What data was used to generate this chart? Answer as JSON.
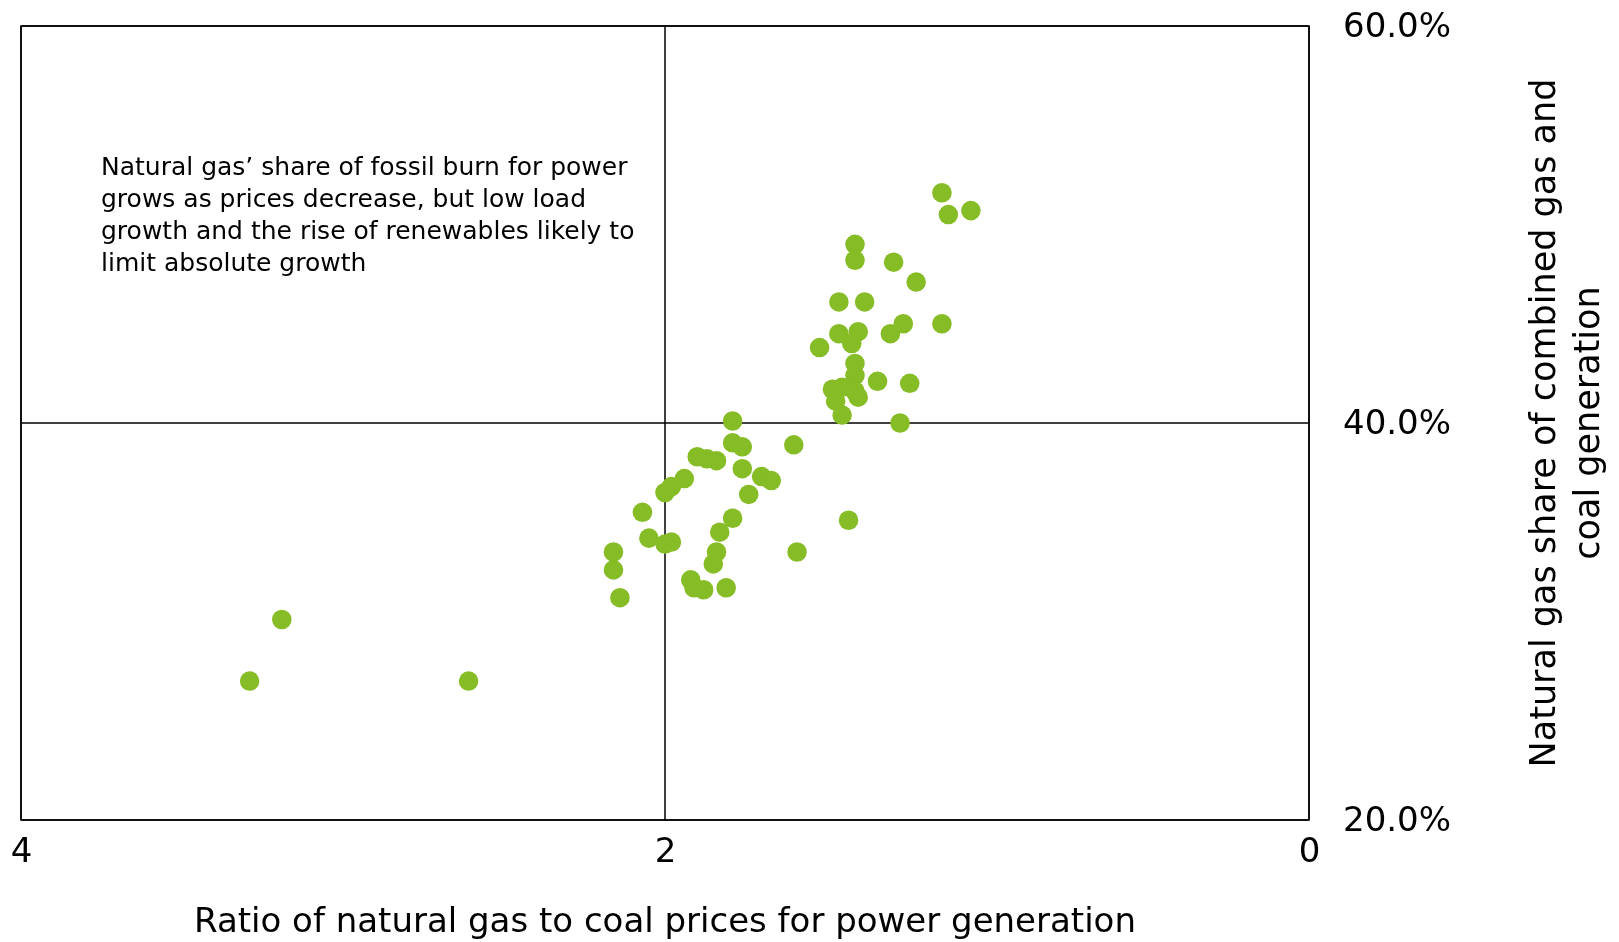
{
  "chart_data": {
    "type": "scatter",
    "xlabel": "Ratio of natural gas to coal prices for power generation",
    "ylabel": "Natural gas share of combined gas and coal generation",
    "annotations": [
      "Natural gas’ share of fossil burn for power grows as prices decrease, but low load growth and the rise of renewables likely to limit absolute growth"
    ],
    "xlim": [
      4,
      0
    ],
    "xticks": [
      4,
      2,
      0
    ],
    "ylim": [
      20,
      60
    ],
    "yticks": [
      {
        "value": 20,
        "label": "20.0%"
      },
      {
        "value": 40,
        "label": "40.0%"
      },
      {
        "value": 60,
        "label": "60.0%"
      }
    ],
    "grid": true,
    "marker": "circle",
    "series": [
      {
        "color": "#86bc25",
        "x": [
          1.14,
          1.05,
          1.12,
          1.41,
          1.41,
          1.29,
          1.22,
          1.46,
          1.38,
          1.46,
          1.4,
          1.42,
          1.3,
          1.26,
          1.14,
          1.52,
          1.41,
          1.41,
          1.34,
          1.24,
          1.48,
          1.45,
          1.41,
          1.4,
          1.47,
          1.45,
          1.27,
          1.79,
          1.79,
          1.76,
          1.6,
          1.9,
          1.87,
          1.84,
          1.76,
          1.7,
          1.67,
          1.94,
          1.98,
          2.0,
          1.74,
          2.07,
          1.79,
          1.43,
          2.05,
          2.0,
          1.98,
          1.83,
          2.16,
          1.84,
          1.59,
          2.16,
          1.85,
          1.92,
          1.91,
          1.88,
          1.81,
          2.14,
          3.19,
          3.29,
          2.61
        ],
        "values": [
          51.6,
          50.7,
          50.5,
          49.0,
          48.2,
          48.1,
          47.1,
          46.1,
          46.1,
          44.5,
          44.6,
          44.0,
          44.5,
          45.0,
          45.0,
          43.8,
          43.0,
          42.4,
          42.1,
          42.0,
          41.7,
          41.8,
          41.6,
          41.3,
          41.1,
          40.4,
          40.0,
          40.1,
          39.0,
          38.8,
          38.9,
          38.3,
          38.2,
          38.1,
          37.7,
          37.3,
          37.1,
          37.2,
          36.8,
          36.5,
          36.4,
          35.5,
          35.2,
          35.1,
          34.2,
          33.9,
          34.0,
          34.5,
          33.5,
          33.5,
          33.5,
          32.6,
          32.9,
          32.1,
          31.7,
          31.6,
          31.7,
          31.2,
          30.1,
          27.0,
          27.0
        ]
      }
    ]
  }
}
